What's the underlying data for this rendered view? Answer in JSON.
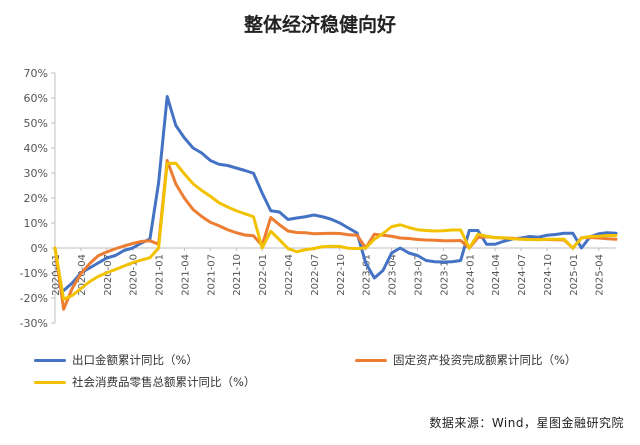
{
  "chart_data": {
    "type": "line",
    "title": "整体经济稳健向好",
    "source": "数据来源：Wind，星图金融研究院",
    "y_ticks": [
      "70%",
      "60%",
      "50%",
      "40%",
      "30%",
      "20%",
      "10%",
      "0%",
      "-10%",
      "-20%",
      "-30%"
    ],
    "ylim": [
      -30,
      70
    ],
    "x_ticks": [
      "2020-01",
      "2020-04",
      "2020-07",
      "2020-10",
      "2021-01",
      "2021-04",
      "2021-07",
      "2021-10",
      "2022-01",
      "2022-04",
      "2022-07",
      "2022-10",
      "2023-01",
      "2023-04",
      "2023-07",
      "2023-10",
      "2024-01",
      "2024-04",
      "2024-07",
      "2024-10",
      "2025-01",
      "2025-04"
    ],
    "x_start": "2020-01",
    "x_end": "2025-06",
    "series": [
      {
        "name": "出口金额累计同比（%）",
        "color": "#4472C4",
        "points": [
          [
            "2020-02",
            -17
          ],
          [
            "2020-03",
            -14
          ],
          [
            "2020-04",
            -10
          ],
          [
            "2020-05",
            -8
          ],
          [
            "2020-06",
            -6
          ],
          [
            "2020-07",
            -4
          ],
          [
            "2020-08",
            -3
          ],
          [
            "2020-09",
            -1
          ],
          [
            "2020-10",
            0
          ],
          [
            "2020-11",
            2
          ],
          [
            "2020-12",
            3.6
          ],
          [
            "2021-01",
            26
          ],
          [
            "2021-02",
            60.6
          ],
          [
            "2021-03",
            49
          ],
          [
            "2021-04",
            44
          ],
          [
            "2021-05",
            40
          ],
          [
            "2021-06",
            38
          ],
          [
            "2021-07",
            35
          ],
          [
            "2021-08",
            33.5
          ],
          [
            "2021-09",
            33
          ],
          [
            "2021-10",
            32
          ],
          [
            "2021-11",
            31
          ],
          [
            "2021-12",
            29.9
          ],
          [
            "2022-01",
            22
          ],
          [
            "2022-02",
            14.9
          ],
          [
            "2022-03",
            14.4
          ],
          [
            "2022-04",
            11.4
          ],
          [
            "2022-05",
            12
          ],
          [
            "2022-06",
            12.5
          ],
          [
            "2022-07",
            13.2
          ],
          [
            "2022-08",
            12.5
          ],
          [
            "2022-09",
            11.5
          ],
          [
            "2022-10",
            10
          ],
          [
            "2022-11",
            8
          ],
          [
            "2022-12",
            6
          ],
          [
            "2023-01",
            -6
          ],
          [
            "2023-02",
            -12
          ],
          [
            "2023-03",
            -9
          ],
          [
            "2023-04",
            -2
          ],
          [
            "2023-05",
            0
          ],
          [
            "2023-06",
            -2
          ],
          [
            "2023-07",
            -3
          ],
          [
            "2023-08",
            -5
          ],
          [
            "2023-09",
            -5.5
          ],
          [
            "2023-10",
            -5.6
          ],
          [
            "2023-11",
            -5.5
          ],
          [
            "2023-12",
            -5
          ],
          [
            "2024-01",
            7
          ],
          [
            "2024-02",
            7
          ],
          [
            "2024-03",
            1.5
          ],
          [
            "2024-04",
            1.5
          ],
          [
            "2024-05",
            2.7
          ],
          [
            "2024-06",
            3.6
          ],
          [
            "2024-07",
            4
          ],
          [
            "2024-08",
            4.6
          ],
          [
            "2024-09",
            4.3
          ],
          [
            "2024-10",
            5.1
          ],
          [
            "2024-11",
            5.4
          ],
          [
            "2024-12",
            5.9
          ],
          [
            "2025-01",
            5.9
          ],
          [
            "2025-02",
            0
          ],
          [
            "2025-03",
            4.5
          ],
          [
            "2025-04",
            5.7
          ],
          [
            "2025-05",
            6.1
          ],
          [
            "2025-06",
            5.9
          ]
        ]
      },
      {
        "name": "固定资产投资完成额累计同比（%）",
        "color": "#ED7D31",
        "points": [
          [
            "2020-01",
            0
          ],
          [
            "2020-02",
            -24.5
          ],
          [
            "2020-03",
            -16.1
          ],
          [
            "2020-04",
            -10.3
          ],
          [
            "2020-05",
            -6.3
          ],
          [
            "2020-06",
            -3.1
          ],
          [
            "2020-07",
            -1.6
          ],
          [
            "2020-08",
            -0.3
          ],
          [
            "2020-09",
            0.8
          ],
          [
            "2020-10",
            1.8
          ],
          [
            "2020-11",
            2.6
          ],
          [
            "2020-12",
            2.9
          ],
          [
            "2021-01",
            1.5
          ],
          [
            "2021-02",
            35
          ],
          [
            "2021-03",
            25.6
          ],
          [
            "2021-04",
            19.9
          ],
          [
            "2021-05",
            15.4
          ],
          [
            "2021-06",
            12.6
          ],
          [
            "2021-07",
            10.3
          ],
          [
            "2021-08",
            8.9
          ],
          [
            "2021-09",
            7.3
          ],
          [
            "2021-10",
            6.1
          ],
          [
            "2021-11",
            5.2
          ],
          [
            "2021-12",
            4.9
          ],
          [
            "2022-01",
            1
          ],
          [
            "2022-02",
            12.2
          ],
          [
            "2022-03",
            9.3
          ],
          [
            "2022-04",
            6.8
          ],
          [
            "2022-05",
            6.2
          ],
          [
            "2022-06",
            6.1
          ],
          [
            "2022-07",
            5.7
          ],
          [
            "2022-08",
            5.8
          ],
          [
            "2022-09",
            5.9
          ],
          [
            "2022-10",
            5.8
          ],
          [
            "2022-11",
            5.3
          ],
          [
            "2022-12",
            5.1
          ],
          [
            "2023-01",
            0
          ],
          [
            "2023-02",
            5.5
          ],
          [
            "2023-03",
            5.1
          ],
          [
            "2023-04",
            4.7
          ],
          [
            "2023-05",
            4
          ],
          [
            "2023-06",
            3.8
          ],
          [
            "2023-07",
            3.4
          ],
          [
            "2023-08",
            3.2
          ],
          [
            "2023-09",
            3.1
          ],
          [
            "2023-10",
            2.9
          ],
          [
            "2023-11",
            2.9
          ],
          [
            "2023-12",
            3
          ],
          [
            "2024-01",
            0
          ],
          [
            "2024-02",
            4.2
          ],
          [
            "2024-03",
            4.5
          ],
          [
            "2024-04",
            4.2
          ],
          [
            "2024-05",
            4
          ],
          [
            "2024-06",
            3.9
          ],
          [
            "2024-07",
            3.6
          ],
          [
            "2024-08",
            3.4
          ],
          [
            "2024-09",
            3.4
          ],
          [
            "2024-10",
            3.4
          ],
          [
            "2024-11",
            3.3
          ],
          [
            "2024-12",
            3.2
          ],
          [
            "2025-01",
            0
          ],
          [
            "2025-02",
            4.1
          ],
          [
            "2025-03",
            4.2
          ],
          [
            "2025-04",
            4
          ],
          [
            "2025-05",
            3.7
          ],
          [
            "2025-06",
            3.5
          ]
        ]
      },
      {
        "name": "社会消费品零售总额累计同比（%）",
        "color": "#F2C200",
        "points": [
          [
            "2020-01",
            0
          ],
          [
            "2020-02",
            -20.5
          ],
          [
            "2020-03",
            -19
          ],
          [
            "2020-04",
            -16.2
          ],
          [
            "2020-05",
            -13.5
          ],
          [
            "2020-06",
            -11.4
          ],
          [
            "2020-07",
            -9.9
          ],
          [
            "2020-08",
            -8.6
          ],
          [
            "2020-09",
            -7.2
          ],
          [
            "2020-10",
            -5.9
          ],
          [
            "2020-11",
            -4.8
          ],
          [
            "2020-12",
            -3.9
          ],
          [
            "2021-01",
            0
          ],
          [
            "2021-02",
            33.8
          ],
          [
            "2021-03",
            33.9
          ],
          [
            "2021-04",
            29.6
          ],
          [
            "2021-05",
            25.7
          ],
          [
            "2021-06",
            23
          ],
          [
            "2021-07",
            20.7
          ],
          [
            "2021-08",
            18.1
          ],
          [
            "2021-09",
            16.4
          ],
          [
            "2021-10",
            14.9
          ],
          [
            "2021-11",
            13.7
          ],
          [
            "2021-12",
            12.5
          ],
          [
            "2022-01",
            0
          ],
          [
            "2022-02",
            6.7
          ],
          [
            "2022-03",
            3.3
          ],
          [
            "2022-04",
            -0.2
          ],
          [
            "2022-05",
            -1.5
          ],
          [
            "2022-06",
            -0.7
          ],
          [
            "2022-07",
            -0.2
          ],
          [
            "2022-08",
            0.5
          ],
          [
            "2022-09",
            0.7
          ],
          [
            "2022-10",
            0.6
          ],
          [
            "2022-11",
            -0.1
          ],
          [
            "2022-12",
            -0.2
          ],
          [
            "2023-01",
            0
          ],
          [
            "2023-02",
            3.5
          ],
          [
            "2023-03",
            5.8
          ],
          [
            "2023-04",
            8.5
          ],
          [
            "2023-05",
            9.3
          ],
          [
            "2023-06",
            8.2
          ],
          [
            "2023-07",
            7.3
          ],
          [
            "2023-08",
            7
          ],
          [
            "2023-09",
            6.8
          ],
          [
            "2023-10",
            6.9
          ],
          [
            "2023-11",
            7.2
          ],
          [
            "2023-12",
            7.2
          ],
          [
            "2024-01",
            0
          ],
          [
            "2024-02",
            5.5
          ],
          [
            "2024-03",
            4.7
          ],
          [
            "2024-04",
            4.1
          ],
          [
            "2024-05",
            4.1
          ],
          [
            "2024-06",
            3.7
          ],
          [
            "2024-07",
            3.5
          ],
          [
            "2024-08",
            3.4
          ],
          [
            "2024-09",
            3.3
          ],
          [
            "2024-10",
            3.5
          ],
          [
            "2024-11",
            3.5
          ],
          [
            "2024-12",
            3.5
          ],
          [
            "2025-01",
            0
          ],
          [
            "2025-02",
            4
          ],
          [
            "2025-03",
            4.6
          ],
          [
            "2025-04",
            4.7
          ],
          [
            "2025-05",
            5
          ],
          [
            "2025-06",
            5
          ]
        ]
      }
    ],
    "grid": false,
    "legend_position": "bottom"
  }
}
